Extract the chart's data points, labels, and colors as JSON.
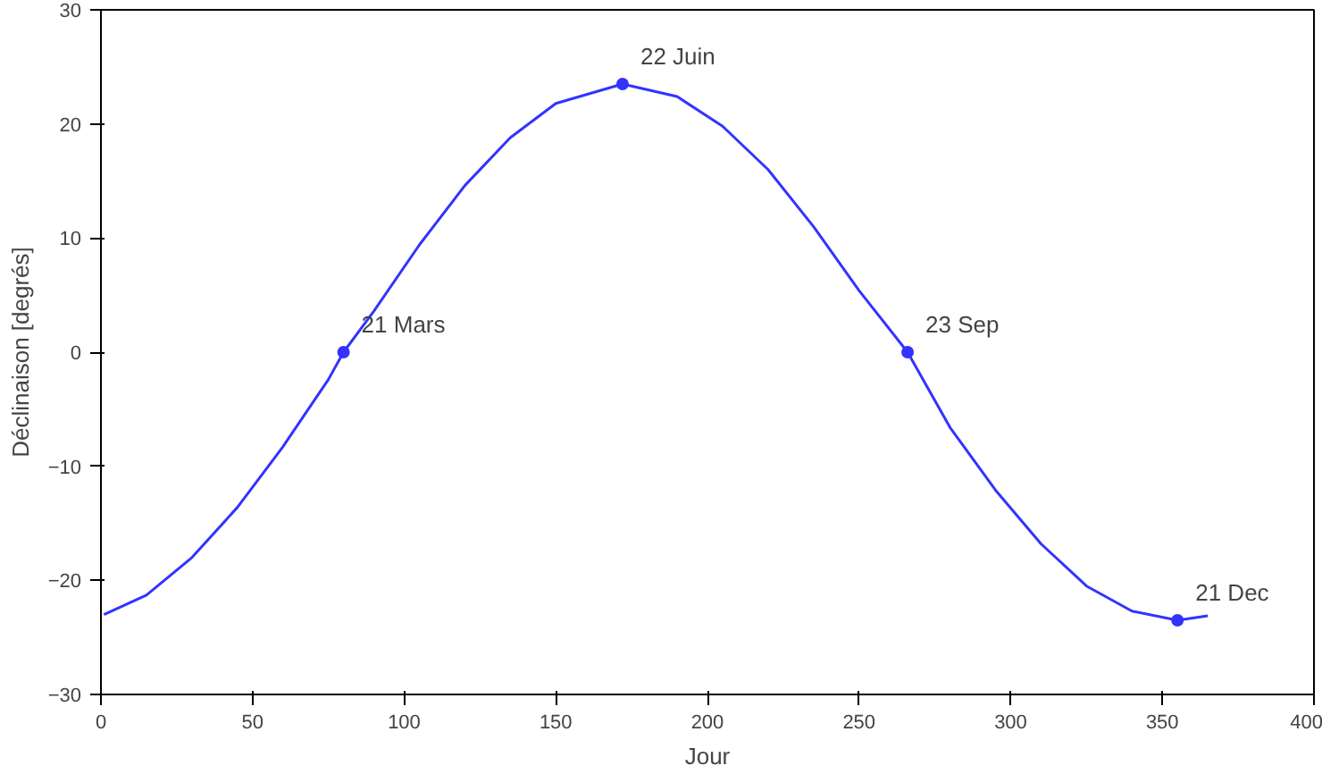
{
  "chart_data": {
    "type": "line",
    "xlabel": "Jour",
    "ylabel": "Déclinaison [degrés]",
    "xlim": [
      0,
      400
    ],
    "ylim": [
      -30,
      30
    ],
    "xticks": [
      0,
      50,
      100,
      150,
      200,
      250,
      300,
      350,
      400
    ],
    "yticks": [
      -30,
      -20,
      -10,
      0,
      10,
      20,
      30
    ],
    "grid": false,
    "marker": "none",
    "line_style": "solid",
    "series": [
      {
        "color": "#3333ff",
        "x": [
          1,
          15,
          30,
          45,
          60,
          75,
          80,
          90,
          105,
          120,
          135,
          150,
          172,
          190,
          205,
          220,
          235,
          250,
          266,
          280,
          295,
          310,
          325,
          340,
          355,
          365
        ],
        "values": [
          -23.0,
          -21.3,
          -18.0,
          -13.6,
          -8.3,
          -2.4,
          0,
          3.6,
          9.4,
          14.6,
          18.8,
          21.8,
          23.5,
          22.4,
          19.8,
          16.0,
          11.0,
          5.4,
          0,
          -6.6,
          -12.1,
          -16.8,
          -20.5,
          -22.7,
          -23.5,
          -23.1
        ]
      },
      {
        "type": "scatter",
        "color": "#3333ff",
        "marker": "circle",
        "x": [
          80,
          172,
          266,
          355
        ],
        "values": [
          0,
          23.5,
          0,
          -23.5
        ]
      }
    ],
    "annotations": [
      {
        "text": "21 Mars",
        "x": 80,
        "y": 0
      },
      {
        "text": "22 Juin",
        "x": 172,
        "y": 23.5
      },
      {
        "text": "23 Sep",
        "x": 266,
        "y": 0
      },
      {
        "text": "21 Dec",
        "x": 355,
        "y": -23.5
      }
    ]
  }
}
